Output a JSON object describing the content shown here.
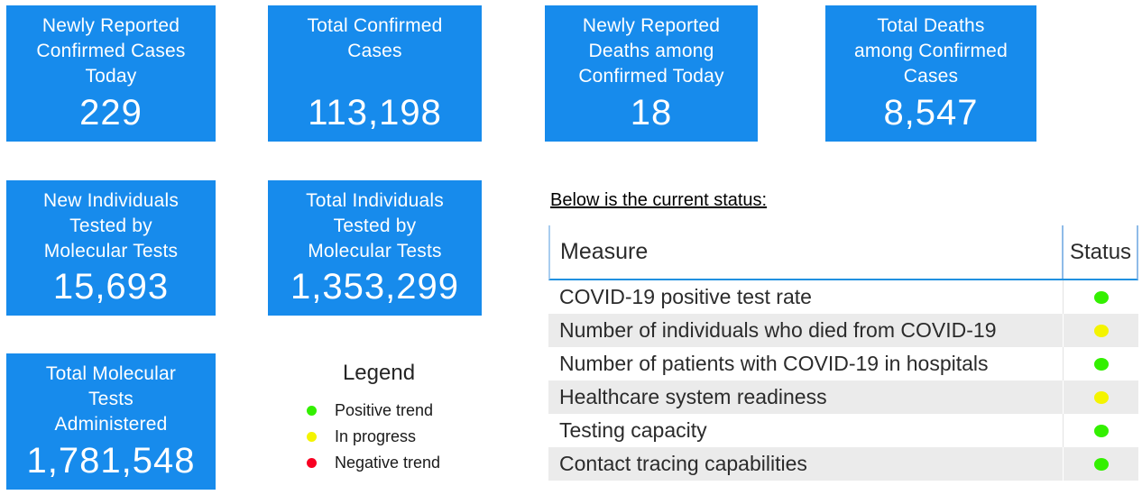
{
  "colors": {
    "card_bg": "#178BEC",
    "card_text": "#FFFFFF",
    "green": "#33F000",
    "yellow": "#F4F400",
    "red": "#F80022",
    "header_line_blue": "#2191E0",
    "header_border_blue": "#8FBBE8",
    "alt_row_gray": "#EBEBEB"
  },
  "cards": [
    {
      "title": "Newly Reported\nConfirmed Cases\nToday",
      "value": "229"
    },
    {
      "title": "Total Confirmed\nCases",
      "value": "113,198"
    },
    {
      "title": "Newly Reported\nDeaths among\nConfirmed Today",
      "value": "18"
    },
    {
      "title": "Total Deaths\namong Confirmed\nCases",
      "value": "8,547"
    },
    {
      "title": "New Individuals\nTested by\nMolecular Tests",
      "value": "15,693"
    },
    {
      "title": "Total Individuals\nTested by\nMolecular Tests",
      "value": "1,353,299"
    },
    {
      "title": "Total Molecular\nTests\nAdministered",
      "value": "1,781,548"
    }
  ],
  "legend": {
    "title": "Legend",
    "items": [
      {
        "label": "Positive trend",
        "status": "green"
      },
      {
        "label": "In progress",
        "status": "yellow"
      },
      {
        "label": "Negative trend",
        "status": "red"
      }
    ]
  },
  "status_table": {
    "caption": "Below is the current status:",
    "columns": [
      "Measure",
      "Status"
    ],
    "rows": [
      {
        "measure": "COVID-19 positive test rate",
        "status": "green"
      },
      {
        "measure": "Number of individuals who died from COVID-19",
        "status": "yellow"
      },
      {
        "measure": "Number of patients with COVID-19 in hospitals",
        "status": "green"
      },
      {
        "measure": "Healthcare system readiness",
        "status": "yellow"
      },
      {
        "measure": "Testing capacity",
        "status": "green"
      },
      {
        "measure": "Contact tracing capabilities",
        "status": "green"
      }
    ]
  }
}
